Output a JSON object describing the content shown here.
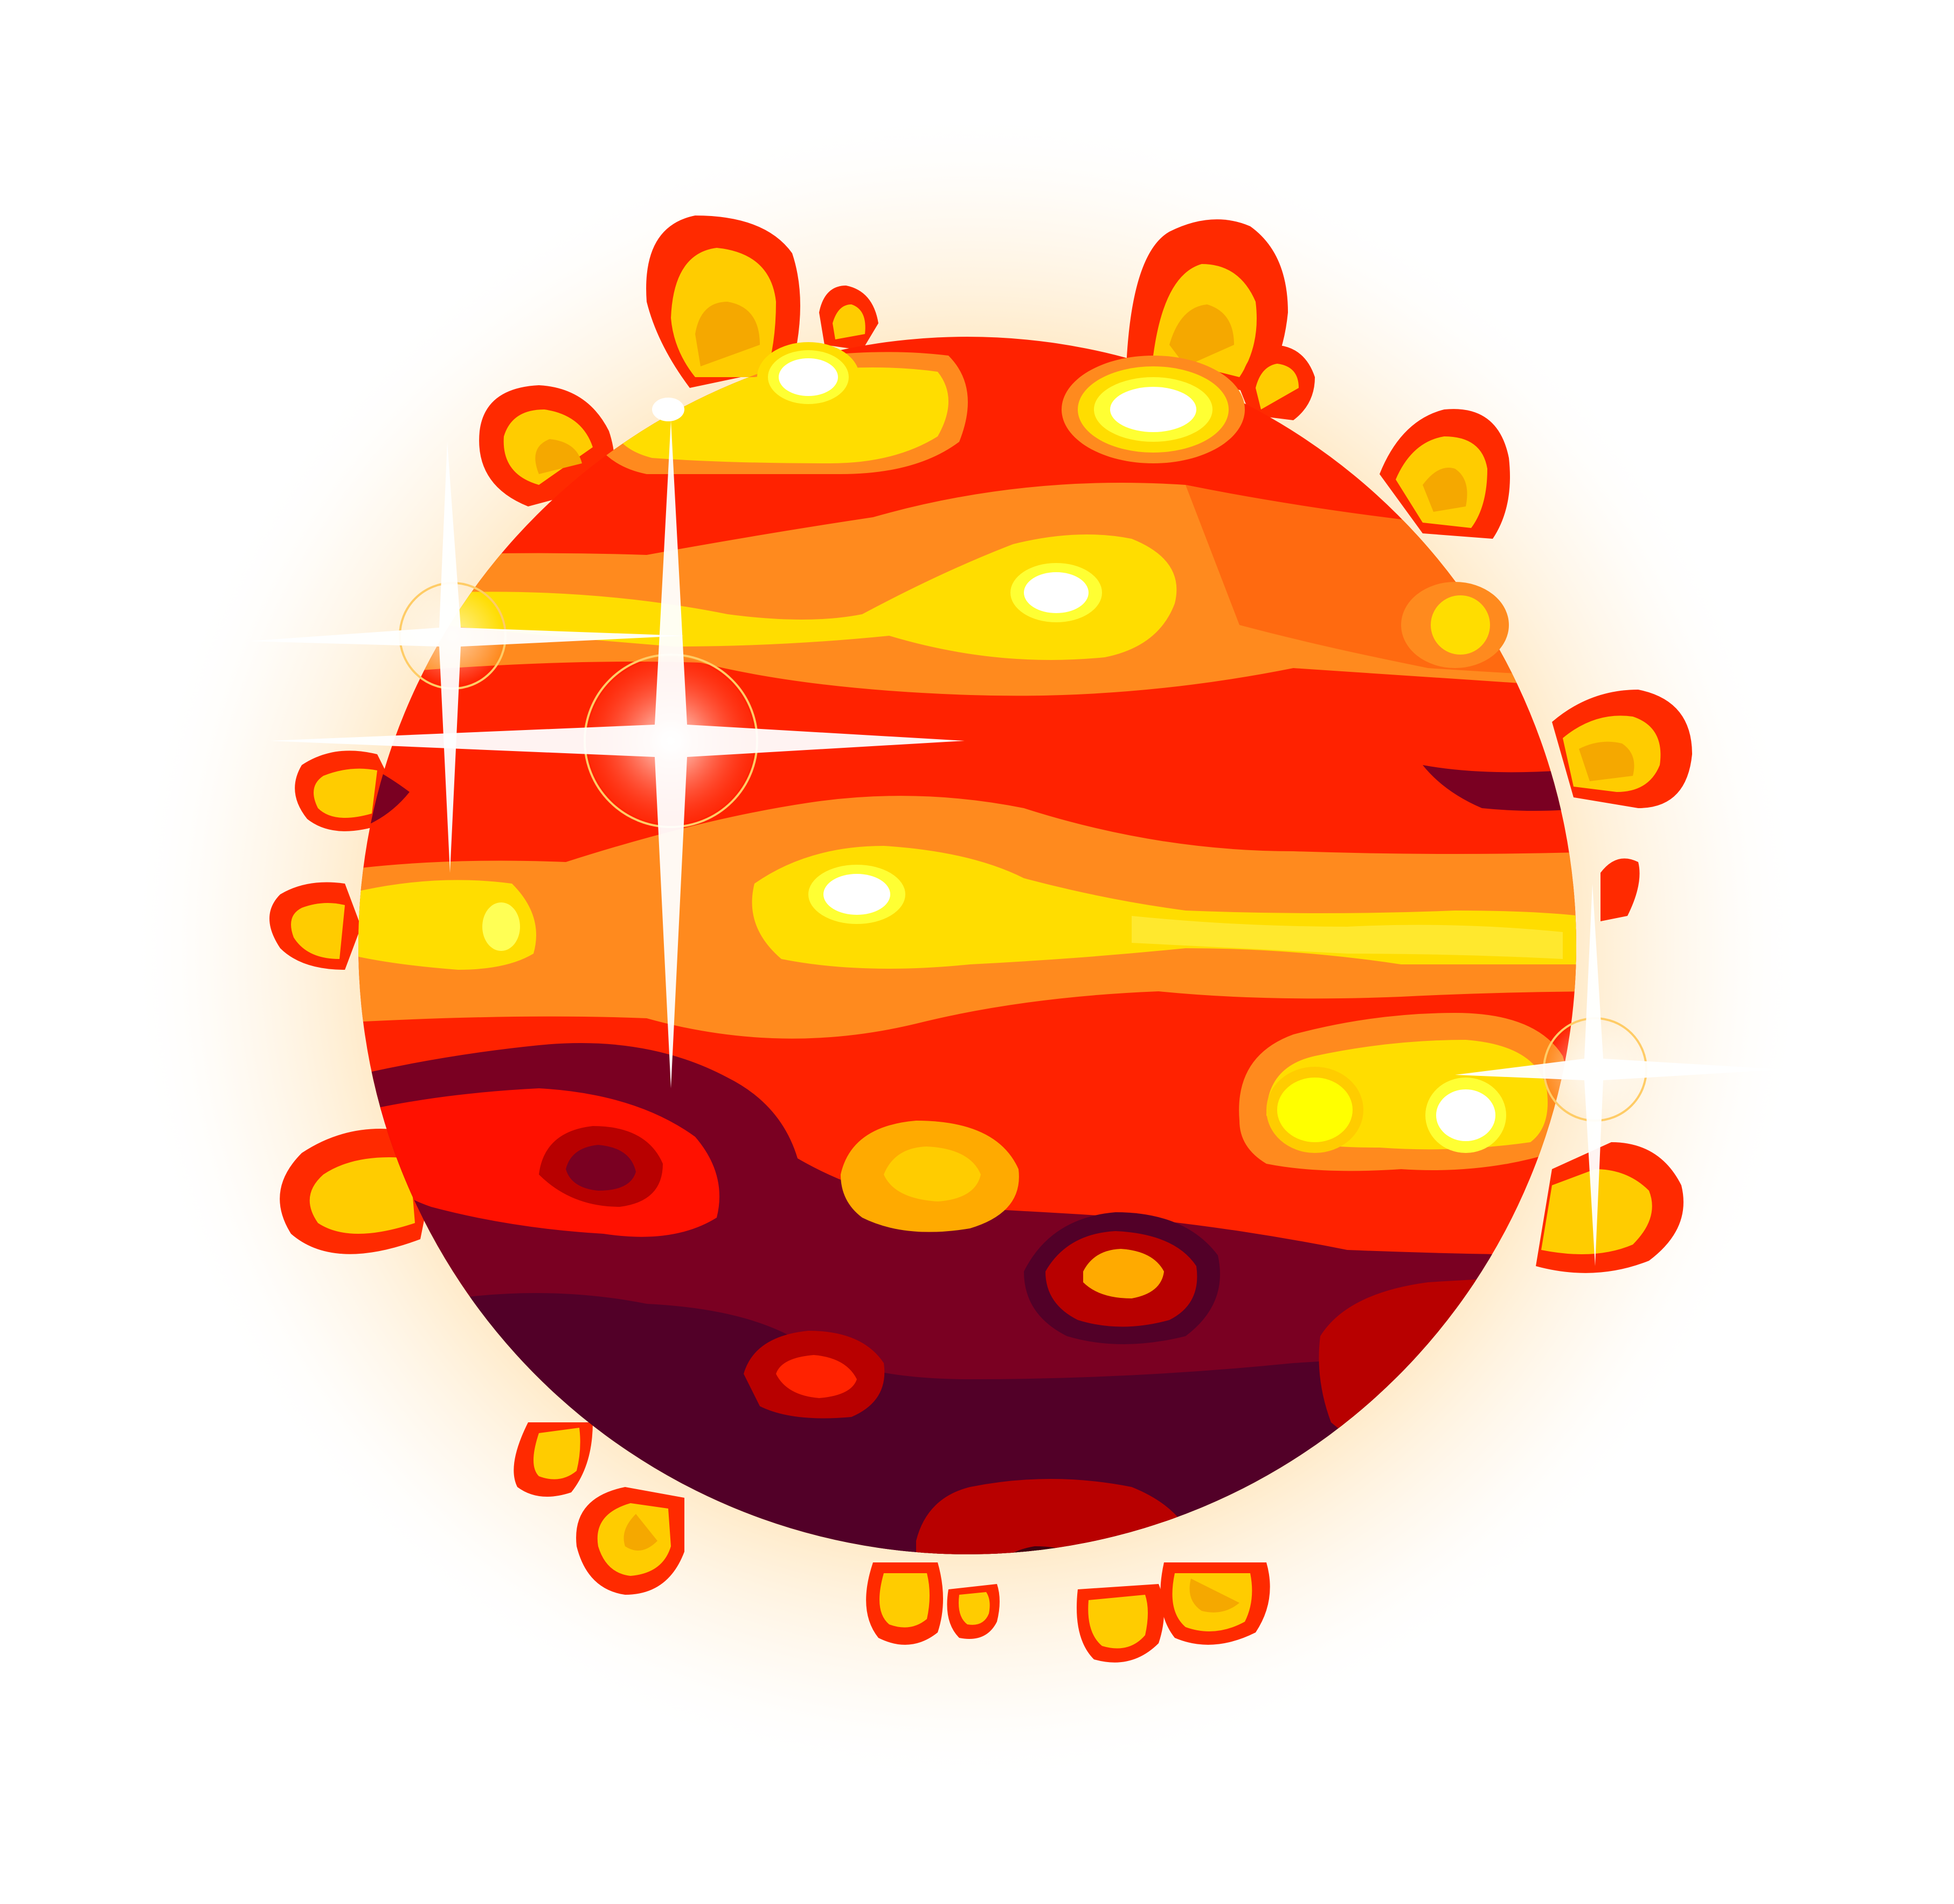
{
  "image": {
    "subject": "lava-planet",
    "colors": {
      "background": "#ffffff",
      "glow": "#ffd9a0",
      "bump_outer": "#ff2a00",
      "bump_inner": "#ffcc00",
      "bump_core": "#f5a800",
      "band_red": "#ff2200",
      "band_orange": "#ff8a1e",
      "band_yellow": "#ffdd00",
      "band_pale": "#ffff33",
      "spot_white": "#ffffff",
      "dark_red": "#b80000",
      "maroon": "#7a0022",
      "deep_maroon": "#520028",
      "sparkle": "#ffffff"
    }
  }
}
